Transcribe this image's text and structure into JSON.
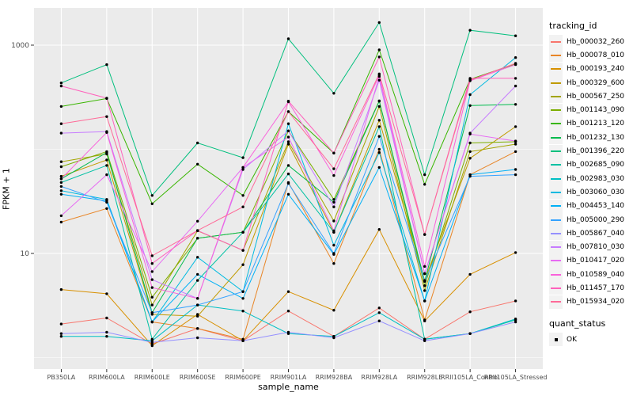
{
  "figure": {
    "xlabel": "sample_name",
    "ylabel": "FPKM + 1",
    "legend_title": "tracking_id",
    "legend2_title": "quant_status",
    "legend2_items": [
      {
        "label": "OK"
      }
    ]
  },
  "chart_data": {
    "type": "line",
    "x_type": "categorical",
    "title": "",
    "xlabel": "sample_name",
    "ylabel": "FPKM + 1",
    "y_scale": "log10",
    "y_ticks": [
      10,
      1000
    ],
    "y_minor_ticks": [
      1,
      100
    ],
    "ylim": [
      1.25,
      2280
    ],
    "grid": true,
    "panel_bg": "#EBEBEB",
    "grid_color": "#FFFFFF",
    "point_color": "#000000",
    "legend_position": "right",
    "categories": [
      "PB350LA",
      "RRIM600LA",
      "RRIM600LE",
      "RRIM600SE",
      "RRIM600PE",
      "RRIM901LA",
      "RRIM928BA",
      "RRIM928LA",
      "RRIM928LE",
      "RRII105LA_Control",
      "RRII105LA_Stressed"
    ],
    "series": [
      {
        "name": "Hb_000032_260",
        "color": "#F8766D",
        "values": [
          2.1,
          2.4,
          1.35,
          1.9,
          1.45,
          2.8,
          1.6,
          3.0,
          1.5,
          2.75,
          3.5
        ]
      },
      {
        "name": "Hb_000078_010",
        "color": "#E88526",
        "values": [
          20,
          27,
          2.2,
          1.9,
          1.5,
          48,
          8,
          100,
          2.3,
          57,
          95
        ]
      },
      {
        "name": "Hb_000193_240",
        "color": "#D89000",
        "values": [
          4.5,
          4.1,
          1.3,
          2.6,
          1.45,
          4.3,
          2.85,
          17,
          2.25,
          6.3,
          10.2
        ]
      },
      {
        "name": "Hb_000329_600",
        "color": "#C09B00",
        "values": [
          55,
          79,
          2.6,
          2.5,
          7.8,
          112,
          16,
          190,
          5.5,
          82,
          165
        ]
      },
      {
        "name": "Hb_000567_250",
        "color": "#A3A500",
        "values": [
          76,
          90,
          3.2,
          16.5,
          10.7,
          118,
          20.5,
          258,
          4.4,
          95,
          112
        ]
      },
      {
        "name": "Hb_001143_090",
        "color": "#7CAE00",
        "values": [
          68,
          95,
          3.8,
          14,
          16,
          150,
          33,
          292,
          4.9,
          115,
          118
        ]
      },
      {
        "name": "Hb_001213_120",
        "color": "#39B600",
        "values": [
          258,
          307,
          30,
          72,
          36,
          230,
          92,
          900,
          46,
          470,
          660
        ]
      },
      {
        "name": "Hb_001232_130",
        "color": "#00BB4E",
        "values": [
          52,
          93,
          2.7,
          14,
          16,
          70,
          31,
          290,
          5.4,
          263,
          270
        ]
      },
      {
        "name": "Hb_001396_220",
        "color": "#00BF7D",
        "values": [
          434,
          650,
          36,
          115,
          83,
          1150,
          345,
          1650,
          57,
          1390,
          1230
        ]
      },
      {
        "name": "Hb_002685_090",
        "color": "#00C1A3",
        "values": [
          48,
          70,
          1.5,
          5.5,
          16,
          58,
          16,
          165,
          1.5,
          1.7,
          2.3
        ]
      },
      {
        "name": "Hb_002983_030",
        "color": "#00BFC4",
        "values": [
          1.6,
          1.6,
          1.45,
          3.2,
          2.8,
          1.7,
          1.6,
          2.7,
          1.5,
          1.7,
          2.35
        ]
      },
      {
        "name": "Hb_003060_030",
        "color": "#00BAE0",
        "values": [
          40,
          33,
          2.2,
          9.2,
          4.3,
          176,
          12,
          93,
          3.5,
          335,
          760
        ]
      },
      {
        "name": "Hb_004453_140",
        "color": "#00B0F6",
        "values": [
          37,
          32,
          2.2,
          6.3,
          3.7,
          37,
          9.8,
          67,
          3.5,
          57,
          64
        ]
      },
      {
        "name": "Hb_005000_290",
        "color": "#35A2FF",
        "values": [
          44,
          31,
          2.7,
          3.2,
          4.3,
          47,
          10,
          133,
          5.4,
          55,
          57
        ]
      },
      {
        "name": "Hb_005867_040",
        "color": "#9590FF",
        "values": [
          1.7,
          1.75,
          1.4,
          1.55,
          1.45,
          1.75,
          1.55,
          2.25,
          1.45,
          1.7,
          2.2
        ]
      },
      {
        "name": "Hb_007810_030",
        "color": "#C77CFF",
        "values": [
          143,
          148,
          5.6,
          3.7,
          64,
          150,
          28,
          460,
          6.4,
          143,
          405
        ]
      },
      {
        "name": "Hb_010417_020",
        "color": "#E76BF3",
        "values": [
          23,
          57,
          6.7,
          20.4,
          67,
          131,
          16.5,
          500,
          6.4,
          140,
          120
        ]
      },
      {
        "name": "Hb_010589_040",
        "color": "#FA62DB",
        "values": [
          52,
          145,
          4.7,
          3.7,
          67,
          286,
          56,
          515,
          7.5,
          455,
          650
        ]
      },
      {
        "name": "Hb_011457_170",
        "color": "#FF62BC",
        "values": [
          405,
          310,
          8.0,
          16.6,
          10.7,
          290,
          92,
          770,
          15.2,
          480,
          480
        ]
      },
      {
        "name": "Hb_015934_020",
        "color": "#FF6A98",
        "values": [
          176,
          206,
          9.5,
          16.6,
          28,
          230,
          65,
          530,
          15.2,
          460,
          670
        ]
      }
    ]
  }
}
